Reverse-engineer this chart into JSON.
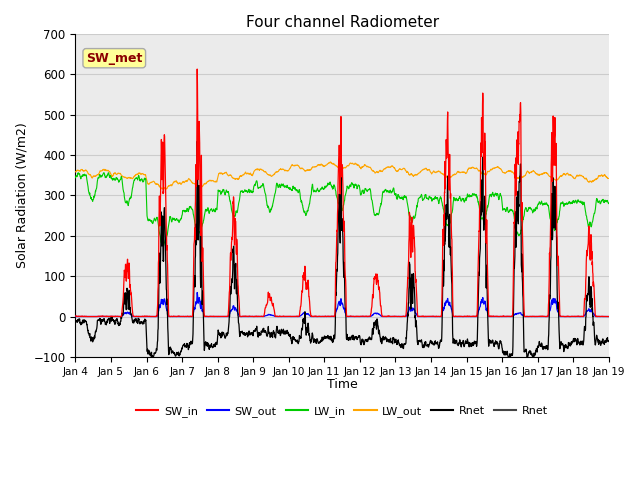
{
  "title": "Four channel Radiometer",
  "xlabel": "Time",
  "ylabel": "Solar Radiation (W/m2)",
  "ylim": [
    -100,
    700
  ],
  "yticks": [
    -100,
    0,
    100,
    200,
    300,
    400,
    500,
    600,
    700
  ],
  "annotation_text": "SW_met",
  "annotation_color": "#8B0000",
  "annotation_bg": "#FFFF99",
  "x_tick_labels": [
    "Jan 4",
    "Jan 5",
    "Jan 6",
    "Jan 7",
    "Jan 8",
    "Jan 9",
    "Jan 10",
    "Jan 11",
    "Jan 12",
    "Jan 13",
    "Jan 14",
    "Jan 15",
    "Jan 16",
    "Jan 17",
    "Jan 18",
    "Jan 19"
  ],
  "legend_entries": [
    "SW_in",
    "SW_out",
    "LW_in",
    "LW_out",
    "Rnet",
    "Rnet"
  ],
  "legend_colors": [
    "#FF0000",
    "#0000FF",
    "#00CC00",
    "#FFA500",
    "#000000",
    "#444444"
  ],
  "grid_color": "#CCCCCC",
  "bg_color": "#EBEBEB",
  "line_colors": {
    "SW_in": "#FF0000",
    "SW_out": "#0000FF",
    "LW_in": "#00CC00",
    "LW_out": "#FFA500",
    "Rnet": "#000000"
  },
  "figsize": [
    6.4,
    4.8
  ],
  "dpi": 100
}
